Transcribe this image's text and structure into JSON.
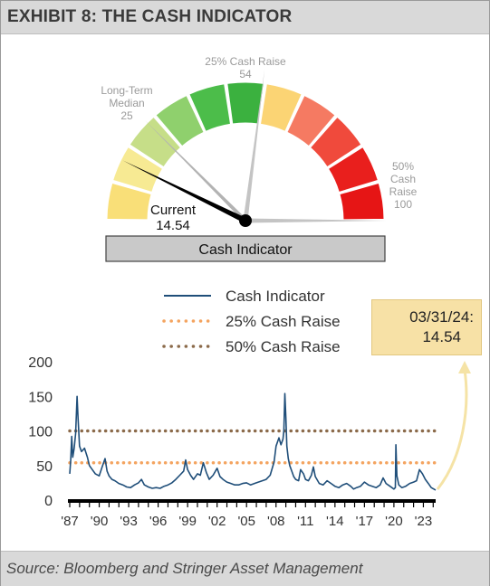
{
  "header": {
    "title": "EXHIBIT 8: THE CASH INDICATOR"
  },
  "footer": {
    "source": "Source: Bloomberg and Stringer Asset Management"
  },
  "colors": {
    "gauge_series": [
      "#f9df78",
      "#f7ea93",
      "#c6de88",
      "#8fd06d",
      "#4cbd4a",
      "#3bb13f",
      "#fbd474",
      "#f57a62",
      "#f04a3c",
      "#e91f1d",
      "#e61515"
    ],
    "line": "#1f4e79",
    "cash_raise_25": "#f4a460",
    "cash_raise_50": "#8b6a4a"
  },
  "gauge": {
    "min": 0,
    "max": 100,
    "current_value": 14.54,
    "current_label": "Current",
    "current_value_label": "14.54",
    "median_value": 25,
    "median_label_line1": "Long-Term",
    "median_label_line2": "Median",
    "median_value_label": "25",
    "raise25_value": 54,
    "raise25_label": "25% Cash Raise",
    "raise25_value_label": "54",
    "raise50_value": 100,
    "raise50_label_line1": "50%",
    "raise50_label_line2": "Cash",
    "raise50_label_line3": "Raise",
    "raise50_value_label": "100",
    "bar_label": "Cash Indicator"
  },
  "callout": {
    "date": "03/31/24:",
    "value": "14.54"
  },
  "chart_data": {
    "type": "line",
    "legend": [
      "Cash Indicator",
      "25% Cash Raise",
      "50% Cash Raise"
    ],
    "legend_placement": "top",
    "x_tick_labels": [
      "'87",
      "'90",
      "'93",
      "'96",
      "'99",
      "'02",
      "'05",
      "'08",
      "'11",
      "'14",
      "'17",
      "'20",
      "'23"
    ],
    "y_tick_labels": [
      "0",
      "50",
      "100",
      "150",
      "200"
    ],
    "ylim": [
      0,
      200
    ],
    "xlim": [
      1987,
      2024.25
    ],
    "grid": false,
    "series": [
      {
        "name": "Cash Indicator",
        "x": [
          1987.0,
          1987.1,
          1987.2,
          1987.3,
          1987.45,
          1987.6,
          1987.75,
          1987.85,
          1988.0,
          1988.2,
          1988.5,
          1988.8,
          1989.0,
          1989.3,
          1989.6,
          1990.0,
          1990.3,
          1990.6,
          1990.8,
          1991.0,
          1991.3,
          1991.6,
          1992.0,
          1992.4,
          1992.8,
          1993.2,
          1993.6,
          1994.0,
          1994.3,
          1994.6,
          1995.0,
          1995.4,
          1995.8,
          1996.2,
          1996.6,
          1997.0,
          1997.4,
          1997.8,
          1998.2,
          1998.6,
          1998.8,
          1999.0,
          1999.3,
          1999.6,
          2000.0,
          2000.3,
          2000.6,
          2000.9,
          2001.2,
          2001.6,
          2002.0,
          2002.3,
          2002.6,
          2003.0,
          2003.4,
          2003.8,
          2004.2,
          2004.6,
          2005.0,
          2005.4,
          2005.8,
          2006.2,
          2006.6,
          2007.0,
          2007.4,
          2007.8,
          2008.0,
          2008.3,
          2008.5,
          2008.7,
          2008.8,
          2008.9,
          2009.0,
          2009.1,
          2009.25,
          2009.4,
          2009.6,
          2009.8,
          2010.0,
          2010.3,
          2010.5,
          2010.8,
          2011.0,
          2011.3,
          2011.6,
          2011.8,
          2012.0,
          2012.4,
          2012.8,
          2013.2,
          2013.6,
          2014.0,
          2014.4,
          2014.8,
          2015.2,
          2015.6,
          2015.9,
          2016.2,
          2016.6,
          2017.0,
          2017.4,
          2017.8,
          2018.2,
          2018.6,
          2018.9,
          2019.2,
          2019.6,
          2020.0,
          2020.15,
          2020.2,
          2020.3,
          2020.5,
          2020.8,
          2021.2,
          2021.6,
          2022.0,
          2022.3,
          2022.6,
          2022.9,
          2023.2,
          2023.5,
          2023.8,
          2024.25
        ],
        "values": [
          38,
          58,
          92,
          62,
          75,
          96,
          150,
          118,
          78,
          70,
          75,
          62,
          50,
          44,
          38,
          35,
          48,
          60,
          42,
          35,
          30,
          28,
          24,
          22,
          19,
          18,
          22,
          25,
          30,
          22,
          19,
          17,
          18,
          17,
          20,
          22,
          25,
          30,
          36,
          42,
          58,
          44,
          36,
          30,
          38,
          36,
          54,
          40,
          30,
          36,
          46,
          34,
          30,
          26,
          24,
          22,
          22,
          24,
          25,
          22,
          24,
          26,
          28,
          30,
          36,
          55,
          78,
          90,
          80,
          88,
          100,
          154,
          120,
          78,
          60,
          50,
          42,
          34,
          30,
          28,
          44,
          38,
          30,
          28,
          36,
          48,
          34,
          24,
          22,
          28,
          24,
          20,
          18,
          22,
          24,
          20,
          16,
          18,
          20,
          26,
          22,
          20,
          18,
          22,
          32,
          24,
          20,
          16,
          18,
          80,
          35,
          22,
          18,
          20,
          24,
          26,
          28,
          44,
          38,
          30,
          24,
          18,
          14.54
        ]
      },
      {
        "name": "25% Cash Raise",
        "values": [
          54
        ]
      },
      {
        "name": "50% Cash Raise",
        "values": [
          100
        ]
      }
    ]
  }
}
